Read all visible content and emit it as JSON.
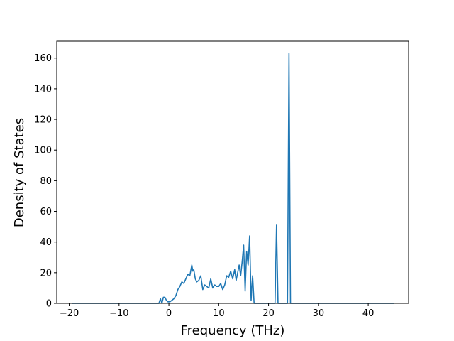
{
  "chart_data": {
    "type": "line",
    "title": "",
    "xlabel": "Frequency (THz)",
    "ylabel": "Density of States",
    "xlim": [
      -22.5,
      48.1
    ],
    "ylim": [
      0,
      171
    ],
    "grid": false,
    "legend": "none",
    "line_color": "#1f77b4",
    "xticks": [
      {
        "value": -20,
        "label": "−20"
      },
      {
        "value": -10,
        "label": "−10"
      },
      {
        "value": 0,
        "label": "0"
      },
      {
        "value": 10,
        "label": "10"
      },
      {
        "value": 20,
        "label": "20"
      },
      {
        "value": 30,
        "label": "30"
      },
      {
        "value": 40,
        "label": "40"
      }
    ],
    "yticks": [
      {
        "value": 0,
        "label": "0"
      },
      {
        "value": 20,
        "label": "20"
      },
      {
        "value": 40,
        "label": "40"
      },
      {
        "value": 60,
        "label": "60"
      },
      {
        "value": 80,
        "label": "80"
      },
      {
        "value": 100,
        "label": "100"
      },
      {
        "value": 120,
        "label": "120"
      },
      {
        "value": 140,
        "label": "140"
      },
      {
        "value": 160,
        "label": "160"
      }
    ],
    "series": [
      {
        "x": [
          -19.5,
          -2.0,
          -1.7,
          -1.4,
          -1.1,
          -0.8,
          -0.5,
          -0.2,
          0.2,
          0.6,
          1.0,
          1.4,
          1.8,
          2.2,
          2.6,
          3.0,
          3.4,
          3.8,
          4.2,
          4.6,
          4.8,
          5.0,
          5.3,
          5.6,
          6.0,
          6.4,
          6.8,
          7.2,
          7.6,
          8.0,
          8.4,
          8.8,
          9.2,
          9.6,
          10.0,
          10.4,
          10.8,
          11.2,
          11.6,
          12.0,
          12.4,
          12.8,
          13.2,
          13.5,
          13.8,
          14.1,
          14.4,
          14.7,
          15.0,
          15.3,
          15.6,
          15.9,
          16.2,
          16.5,
          16.8,
          17.1,
          17.4,
          17.7,
          18.0,
          21.3,
          21.6,
          21.9,
          23.8,
          24.1,
          24.4,
          45.2
        ],
        "y": [
          0,
          0,
          3,
          0,
          4,
          4,
          2,
          1,
          1,
          2,
          3,
          5,
          9,
          11,
          14,
          13,
          16,
          19,
          18,
          25,
          21,
          22,
          16,
          14,
          15,
          18,
          9,
          12,
          11,
          10,
          16,
          10,
          12,
          11,
          11,
          13,
          9,
          12,
          18,
          17,
          21,
          16,
          22,
          15,
          20,
          25,
          18,
          27,
          38,
          8,
          34,
          25,
          44,
          2,
          18,
          0,
          0,
          0,
          0,
          0,
          51,
          0,
          0,
          163,
          0,
          0
        ]
      }
    ]
  }
}
